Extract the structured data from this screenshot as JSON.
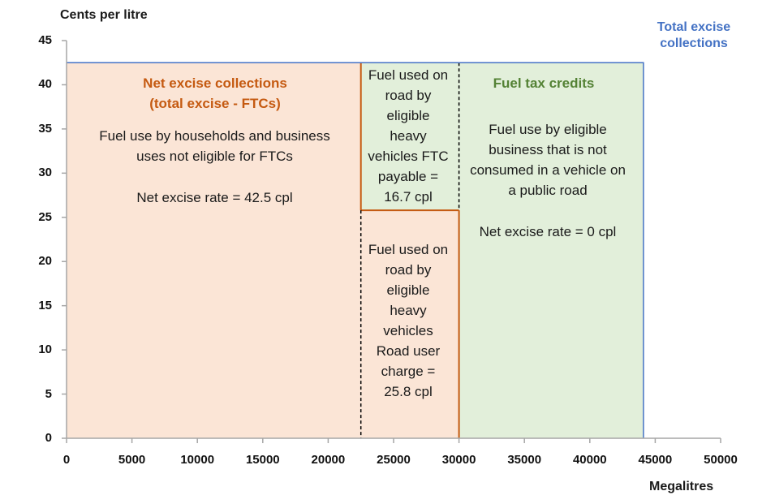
{
  "chart_data": {
    "type": "bar",
    "ylabel": "Cents per litre",
    "xlabel": "Megalitres",
    "xlim": [
      0,
      50000
    ],
    "ylim": [
      0,
      45
    ],
    "x_ticks": [
      "0",
      "5000",
      "10000",
      "15000",
      "20000",
      "25000",
      "30000",
      "35000",
      "40000",
      "45000",
      "50000"
    ],
    "y_ticks": [
      "0",
      "5",
      "10",
      "15",
      "20",
      "25",
      "30",
      "35",
      "40",
      "45"
    ],
    "grid": false,
    "blocks": [
      {
        "id": "net",
        "x0": 0,
        "x1": 22500,
        "y0": 0,
        "y1": 42.5,
        "fill": "#FBE5D6"
      },
      {
        "id": "heavy-ftc",
        "x0": 22500,
        "x1": 30000,
        "y0": 25.8,
        "y1": 42.5,
        "fill": "#E2EFDA"
      },
      {
        "id": "heavy-ruc",
        "x0": 22500,
        "x1": 30000,
        "y0": 0,
        "y1": 25.8,
        "fill": "#FBE5D6"
      },
      {
        "id": "offroad",
        "x0": 30000,
        "x1": 44100,
        "y0": 0,
        "y1": 42.5,
        "fill": "#E2EFDA"
      }
    ],
    "total_outline": {
      "x0": 0,
      "x1": 44100,
      "y1": 42.5,
      "color": "#4472C4"
    },
    "colors": {
      "orange": "#C55A11",
      "blue": "#4472C4",
      "green_text": "#548235",
      "axis": "#A6A6A6"
    },
    "annotations": {
      "total": "Total excise collections",
      "net_title": "Net excise collections (total excise - FTCs)",
      "net_body": "Fuel use by households and business uses not eligible for FTCs",
      "net_rate": "Net excise rate = 42.5 cpl",
      "ftc_title": "Fuel tax credits",
      "ftc_body": "Fuel use by eligible business that is not consumed in a vehicle on a public road",
      "ftc_rate": "Net excise rate = 0 cpl",
      "heavy_ftc": "Fuel used on road by eligible heavy vehicles FTC payable = 16.7 cpl",
      "heavy_ruc": "Fuel used on road by eligible heavy vehicles Road user charge = 25.8 cpl"
    }
  }
}
